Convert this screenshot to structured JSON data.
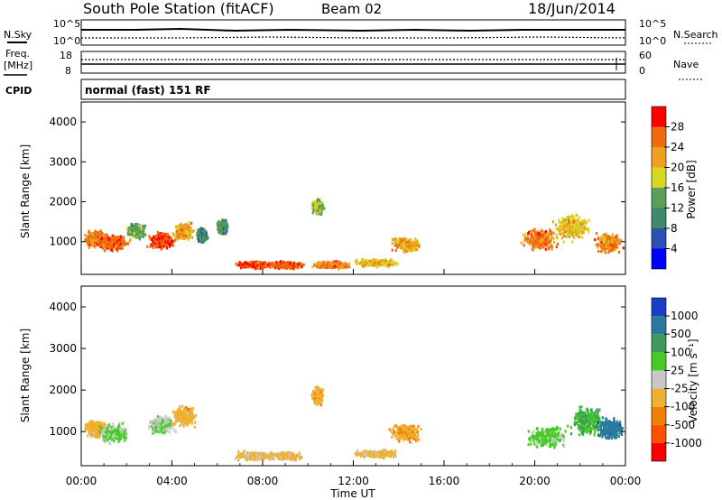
{
  "header": {
    "station": "South Pole Station (fitACF)",
    "beam": "Beam 02",
    "date": "18/Jun/2014"
  },
  "nsky_panel": {
    "left_label": "N.Sky",
    "left_ticks": [
      "10^5",
      "10^0"
    ],
    "right_label": "N.Search",
    "right_ticks": [
      "10^5",
      "10^0"
    ]
  },
  "freq_panel": {
    "left_label_1": "Freq.",
    "left_label_2": "[MHz]",
    "left_ticks": [
      "18",
      "8"
    ],
    "right_label": "Nave",
    "right_ticks": [
      "60",
      "0"
    ]
  },
  "cpid_panel": {
    "label": "CPID",
    "value": "normal (fast) 151 RF"
  },
  "colors": {
    "power": [
      "#0000ff",
      "#2c4fb0",
      "#3e8a6a",
      "#5aa05a",
      "#d8d820",
      "#f0a020",
      "#f06a10",
      "#ff0000"
    ],
    "velocity": [
      "#ff0000",
      "#ff5000",
      "#f08000",
      "#f0b030",
      "#c8c8c8",
      "#44cc22",
      "#3c9a5c",
      "#2a7aa0",
      "#1a3cc8"
    ]
  },
  "chart_data": [
    {
      "type": "heatmap",
      "title": "Power",
      "ylabel": "Slant Range [km]",
      "yticks": [
        "1000",
        "2000",
        "3000",
        "4000"
      ],
      "ylim": [
        180,
        4500
      ],
      "xlim": [
        0,
        24
      ],
      "colorbar": {
        "label": "Power [dB]",
        "ticks": [
          "4",
          "8",
          "12",
          "16",
          "20",
          "24",
          "28"
        ],
        "range": [
          0,
          32
        ]
      },
      "blobs": [
        {
          "t": 0.6,
          "r": 1100,
          "dt": 0.6,
          "dr": 250,
          "v": 24
        },
        {
          "t": 1.4,
          "r": 1000,
          "dt": 0.8,
          "dr": 260,
          "v": 26
        },
        {
          "t": 2.4,
          "r": 1300,
          "dt": 0.5,
          "dr": 220,
          "v": 14
        },
        {
          "t": 3.5,
          "r": 1050,
          "dt": 0.7,
          "dr": 250,
          "v": 28
        },
        {
          "t": 4.5,
          "r": 1300,
          "dt": 0.5,
          "dr": 260,
          "v": 22
        },
        {
          "t": 5.3,
          "r": 1200,
          "dt": 0.3,
          "dr": 220,
          "v": 10
        },
        {
          "t": 6.2,
          "r": 1400,
          "dt": 0.3,
          "dr": 220,
          "v": 12
        },
        {
          "t": 7.6,
          "r": 450,
          "dt": 1.0,
          "dr": 120,
          "v": 27
        },
        {
          "t": 9.0,
          "r": 450,
          "dt": 0.9,
          "dr": 110,
          "v": 27
        },
        {
          "t": 10.4,
          "r": 1900,
          "dt": 0.3,
          "dr": 240,
          "v": 16
        },
        {
          "t": 11.0,
          "r": 450,
          "dt": 1.0,
          "dr": 110,
          "v": 24
        },
        {
          "t": 14.3,
          "r": 950,
          "dt": 0.7,
          "dr": 200,
          "v": 22
        },
        {
          "t": 13.0,
          "r": 500,
          "dt": 1.2,
          "dr": 120,
          "v": 20
        },
        {
          "t": 20.2,
          "r": 1100,
          "dt": 0.9,
          "dr": 300,
          "v": 25
        },
        {
          "t": 21.6,
          "r": 1400,
          "dt": 1.0,
          "dr": 400,
          "v": 20
        },
        {
          "t": 23.2,
          "r": 1000,
          "dt": 0.7,
          "dr": 300,
          "v": 24
        }
      ]
    },
    {
      "type": "heatmap",
      "title": "Velocity",
      "ylabel": "Slant Range [km]",
      "yticks": [
        "1000",
        "2000",
        "3000",
        "4000"
      ],
      "ylim": [
        180,
        4500
      ],
      "xlim": [
        0,
        24
      ],
      "xticks": [
        "00:00",
        "04:00",
        "08:00",
        "12:00",
        "16:00",
        "20:00",
        "00:00"
      ],
      "xlabel": "Time UT",
      "colorbar": {
        "label": "Velocity [m s⁻¹]",
        "ticks": [
          "-1000",
          "-500",
          "-100",
          "-25",
          "25",
          "100",
          "500",
          "1000"
        ],
        "range": [
          -1200,
          1200
        ]
      },
      "blobs": [
        {
          "t": 0.6,
          "r": 1100,
          "dt": 0.6,
          "dr": 250,
          "v": -300
        },
        {
          "t": 1.4,
          "r": 1000,
          "dt": 0.8,
          "dr": 260,
          "v": 150
        },
        {
          "t": 3.5,
          "r": 1200,
          "dt": 0.7,
          "dr": 250,
          "v": 120
        },
        {
          "t": 4.5,
          "r": 1400,
          "dt": 0.6,
          "dr": 300,
          "v": -250
        },
        {
          "t": 7.6,
          "r": 450,
          "dt": 1.0,
          "dr": 120,
          "v": -200
        },
        {
          "t": 9.0,
          "r": 450,
          "dt": 0.9,
          "dr": 110,
          "v": -200
        },
        {
          "t": 10.4,
          "r": 1900,
          "dt": 0.3,
          "dr": 240,
          "v": -300
        },
        {
          "t": 14.3,
          "r": 1000,
          "dt": 0.8,
          "dr": 250,
          "v": -350
        },
        {
          "t": 13.0,
          "r": 500,
          "dt": 1.2,
          "dr": 120,
          "v": -200
        },
        {
          "t": 20.5,
          "r": 900,
          "dt": 1.0,
          "dr": 300,
          "v": 200
        },
        {
          "t": 22.3,
          "r": 1300,
          "dt": 0.9,
          "dr": 400,
          "v": 400
        },
        {
          "t": 23.3,
          "r": 1100,
          "dt": 0.7,
          "dr": 300,
          "v": 800
        }
      ]
    }
  ]
}
